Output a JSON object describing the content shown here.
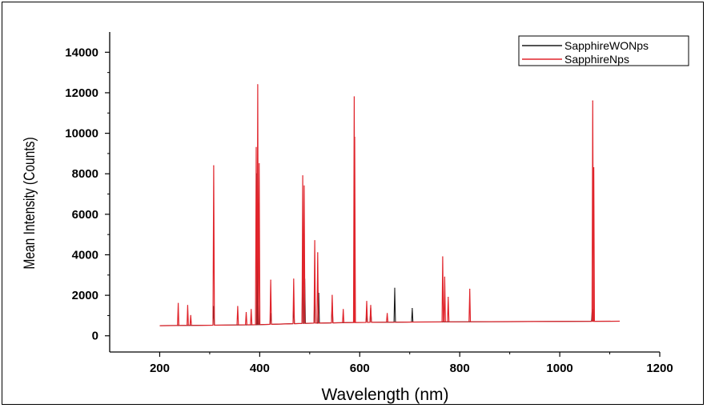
{
  "chart_data": {
    "type": "line",
    "title": "",
    "xlabel": "Wavelength (nm)",
    "ylabel": "Mean Intensity (Counts)",
    "xlim": [
      100,
      1200
    ],
    "ylim": [
      -800,
      15000
    ],
    "x_ticks": [
      "200",
      "400",
      "600",
      "800",
      "1000",
      "1200"
    ],
    "y_ticks": [
      "0",
      "2000",
      "4000",
      "6000",
      "8000",
      "10000",
      "12000",
      "14000"
    ],
    "x_tick_values": [
      200,
      400,
      600,
      800,
      1000,
      1200
    ],
    "y_tick_values": [
      0,
      2000,
      4000,
      6000,
      8000,
      10000,
      12000,
      14000
    ],
    "legend_position": "top-right",
    "baseline": {
      "x": [
        200,
        300,
        400,
        500,
        600,
        700,
        800,
        900,
        1000,
        1120
      ],
      "y": [
        500,
        520,
        550,
        620,
        660,
        680,
        690,
        700,
        710,
        720
      ]
    },
    "series": [
      {
        "name": "SapphireWONps",
        "color": "#1a1a1a",
        "peaks": [
          {
            "x": 308,
            "y": 1450
          },
          {
            "x": 395,
            "y": 8000
          },
          {
            "x": 397,
            "y": 2700
          },
          {
            "x": 422,
            "y": 1100
          },
          {
            "x": 468,
            "y": 1550
          },
          {
            "x": 486,
            "y": 4000
          },
          {
            "x": 490,
            "y": 2800
          },
          {
            "x": 510,
            "y": 2400
          },
          {
            "x": 518,
            "y": 2100
          },
          {
            "x": 545,
            "y": 1600
          },
          {
            "x": 589,
            "y": 2000
          },
          {
            "x": 614,
            "y": 1100
          },
          {
            "x": 622,
            "y": 1350
          },
          {
            "x": 670,
            "y": 2350
          },
          {
            "x": 705,
            "y": 1350
          },
          {
            "x": 1065,
            "y": 1300
          }
        ]
      },
      {
        "name": "SapphireNps",
        "color": "#e0242b",
        "peaks": [
          {
            "x": 237,
            "y": 1600
          },
          {
            "x": 256,
            "y": 1500
          },
          {
            "x": 262,
            "y": 1000
          },
          {
            "x": 308,
            "y": 8400
          },
          {
            "x": 356,
            "y": 1450
          },
          {
            "x": 373,
            "y": 1150
          },
          {
            "x": 383,
            "y": 1300
          },
          {
            "x": 393,
            "y": 9300
          },
          {
            "x": 396,
            "y": 12400
          },
          {
            "x": 399,
            "y": 8500
          },
          {
            "x": 422,
            "y": 2750
          },
          {
            "x": 468,
            "y": 2800
          },
          {
            "x": 486,
            "y": 7900
          },
          {
            "x": 489,
            "y": 7400
          },
          {
            "x": 510,
            "y": 4700
          },
          {
            "x": 516,
            "y": 4100
          },
          {
            "x": 545,
            "y": 2000
          },
          {
            "x": 567,
            "y": 1300
          },
          {
            "x": 589,
            "y": 11800
          },
          {
            "x": 590,
            "y": 9800
          },
          {
            "x": 614,
            "y": 1700
          },
          {
            "x": 622,
            "y": 1500
          },
          {
            "x": 655,
            "y": 1100
          },
          {
            "x": 766,
            "y": 3900
          },
          {
            "x": 770,
            "y": 2900
          },
          {
            "x": 777,
            "y": 1900
          },
          {
            "x": 820,
            "y": 2300
          },
          {
            "x": 1066,
            "y": 11600
          },
          {
            "x": 1068,
            "y": 8300
          }
        ]
      }
    ]
  }
}
